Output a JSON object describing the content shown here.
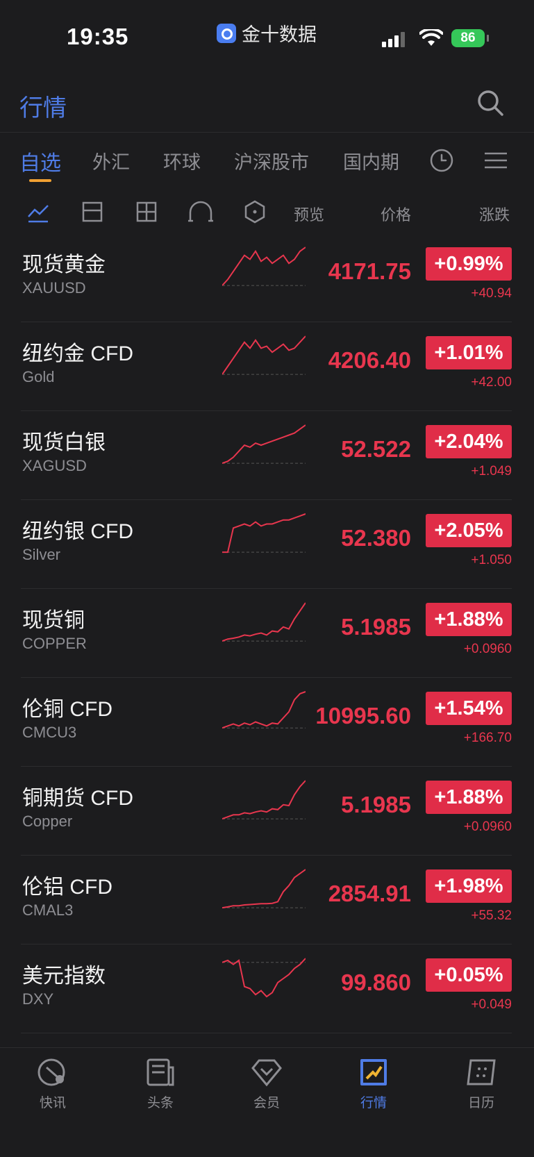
{
  "status": {
    "time": "19:35",
    "app_name": "金十数据",
    "battery": "86"
  },
  "header": {
    "title": "行情"
  },
  "tabs": [
    {
      "label": "自选"
    },
    {
      "label": "外汇"
    },
    {
      "label": "环球"
    },
    {
      "label": "沪深股市"
    },
    {
      "label": "国内期"
    }
  ],
  "columns": {
    "preview": "预览",
    "price": "价格",
    "change": "涨跌"
  },
  "quotes": [
    {
      "name": "现货黄金",
      "code": "XAUUSD",
      "price": "4171.75",
      "pct": "+0.99%",
      "chg": "+40.94",
      "spark": [
        0.95,
        0.8,
        0.6,
        0.4,
        0.2,
        0.3,
        0.1,
        0.35,
        0.25,
        0.4,
        0.3,
        0.2,
        0.4,
        0.3,
        0.1,
        0.0
      ]
    },
    {
      "name": "纽约金 CFD",
      "code": "Gold",
      "price": "4206.40",
      "pct": "+1.01%",
      "chg": "+42.00",
      "spark": [
        0.95,
        0.75,
        0.55,
        0.35,
        0.15,
        0.3,
        0.1,
        0.3,
        0.25,
        0.4,
        0.3,
        0.2,
        0.35,
        0.3,
        0.15,
        0.0
      ]
    },
    {
      "name": "现货白银",
      "code": "XAGUSD",
      "price": "52.522",
      "pct": "+2.04%",
      "chg": "+1.049",
      "spark": [
        0.95,
        0.9,
        0.8,
        0.65,
        0.5,
        0.55,
        0.45,
        0.5,
        0.45,
        0.4,
        0.35,
        0.3,
        0.25,
        0.2,
        0.1,
        0.0
      ]
    },
    {
      "name": "纽约银 CFD",
      "code": "Silver",
      "price": "52.380",
      "pct": "+2.05%",
      "chg": "+1.050",
      "spark": [
        0.95,
        0.95,
        0.35,
        0.3,
        0.25,
        0.3,
        0.2,
        0.3,
        0.25,
        0.25,
        0.2,
        0.15,
        0.15,
        0.1,
        0.05,
        0.0
      ]
    },
    {
      "name": "现货铜",
      "code": "COPPER",
      "price": "5.1985",
      "pct": "+1.88%",
      "chg": "+0.0960",
      "spark": [
        0.95,
        0.9,
        0.88,
        0.85,
        0.8,
        0.82,
        0.78,
        0.75,
        0.8,
        0.7,
        0.72,
        0.6,
        0.65,
        0.4,
        0.2,
        0.0
      ]
    },
    {
      "name": "伦铜 CFD",
      "code": "CMCU3",
      "price": "10995.60",
      "pct": "+1.54%",
      "chg": "+166.70",
      "spark": [
        0.9,
        0.85,
        0.8,
        0.85,
        0.78,
        0.82,
        0.75,
        0.8,
        0.85,
        0.78,
        0.8,
        0.65,
        0.5,
        0.2,
        0.05,
        0.0
      ]
    },
    {
      "name": "铜期货 CFD",
      "code": "Copper",
      "price": "5.1985",
      "pct": "+1.88%",
      "chg": "+0.0960",
      "spark": [
        0.95,
        0.9,
        0.85,
        0.85,
        0.8,
        0.82,
        0.78,
        0.75,
        0.78,
        0.7,
        0.72,
        0.6,
        0.62,
        0.35,
        0.15,
        0.0
      ]
    },
    {
      "name": "伦铝 CFD",
      "code": "CMAL3",
      "price": "2854.91",
      "pct": "+1.98%",
      "chg": "+55.32",
      "spark": [
        0.95,
        0.93,
        0.9,
        0.9,
        0.88,
        0.87,
        0.86,
        0.85,
        0.85,
        0.84,
        0.8,
        0.55,
        0.4,
        0.2,
        0.1,
        0.0
      ]
    },
    {
      "name": "美元指数",
      "code": "DXY",
      "price": "99.860",
      "pct": "+0.05%",
      "chg": "+0.049",
      "spark": [
        0.1,
        0.05,
        0.15,
        0.05,
        0.7,
        0.75,
        0.9,
        0.8,
        0.95,
        0.85,
        0.6,
        0.5,
        0.4,
        0.25,
        0.15,
        0.0
      ]
    }
  ],
  "tabbar": [
    {
      "label": "快讯",
      "icon": "flash-news-icon"
    },
    {
      "label": "头条",
      "icon": "headline-icon"
    },
    {
      "label": "会员",
      "icon": "vip-icon"
    },
    {
      "label": "行情",
      "icon": "market-icon"
    },
    {
      "label": "日历",
      "icon": "calendar-icon"
    }
  ]
}
